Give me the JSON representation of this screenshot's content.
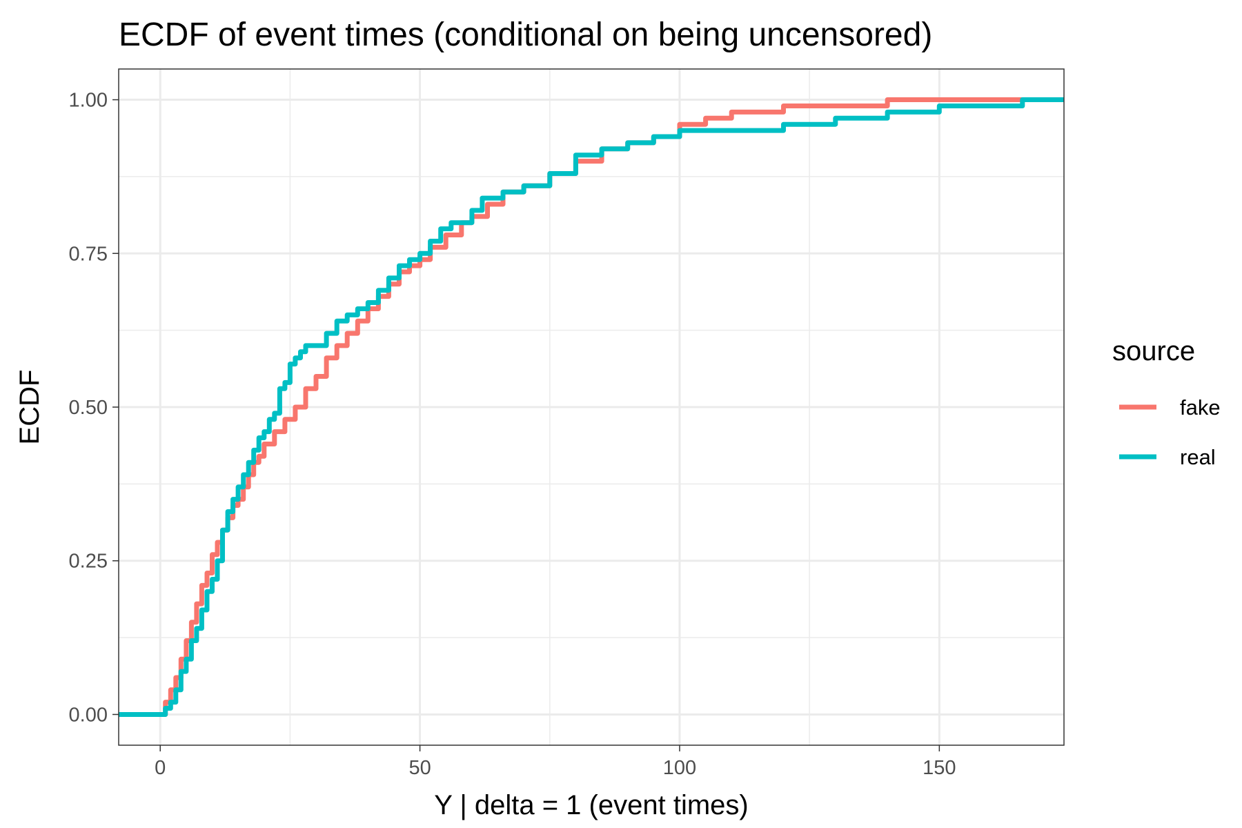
{
  "chart_data": {
    "type": "line",
    "step": true,
    "title": "ECDF of event times (conditional on being uncensored)",
    "xlabel": "Y | delta = 1 (event times)",
    "ylabel": "ECDF",
    "xlim": [
      -8,
      174
    ],
    "ylim": [
      -0.05,
      1.05
    ],
    "xticks": [
      0,
      50,
      100,
      150
    ],
    "xtick_labels": [
      "0",
      "50",
      "100",
      "150"
    ],
    "yticks": [
      0,
      0.25,
      0.5,
      0.75,
      1
    ],
    "ytick_labels": [
      "0.00",
      "0.25",
      "0.50",
      "0.75",
      "1.00"
    ],
    "grid": true,
    "legend": {
      "title": "source",
      "position": "right"
    },
    "series": [
      {
        "name": "fake",
        "color": "#F8766D",
        "x": [
          -8,
          0,
          1,
          2,
          3,
          4,
          5,
          6,
          7,
          8,
          9,
          10,
          11,
          12,
          13,
          14,
          15,
          16,
          17,
          18,
          19,
          20,
          22,
          24,
          26,
          28,
          30,
          32,
          34,
          36,
          38,
          40,
          42,
          44,
          46,
          48,
          50,
          52,
          55,
          58,
          60,
          63,
          66,
          70,
          75,
          80,
          85,
          90,
          95,
          100,
          105,
          110,
          120,
          130,
          140,
          150,
          160,
          167,
          174
        ],
        "y": [
          0,
          0,
          0.02,
          0.04,
          0.06,
          0.09,
          0.12,
          0.15,
          0.18,
          0.21,
          0.23,
          0.26,
          0.28,
          0.3,
          0.32,
          0.34,
          0.35,
          0.37,
          0.39,
          0.41,
          0.42,
          0.44,
          0.46,
          0.48,
          0.5,
          0.53,
          0.55,
          0.58,
          0.6,
          0.62,
          0.64,
          0.66,
          0.68,
          0.7,
          0.72,
          0.73,
          0.74,
          0.76,
          0.78,
          0.8,
          0.81,
          0.83,
          0.85,
          0.86,
          0.88,
          0.9,
          0.92,
          0.93,
          0.94,
          0.96,
          0.97,
          0.98,
          0.99,
          0.99,
          1.0,
          1.0,
          1.0,
          1.0,
          1.0
        ]
      },
      {
        "name": "real",
        "color": "#00BFC4",
        "x": [
          -8,
          0,
          1,
          2,
          3,
          4,
          5,
          6,
          7,
          8,
          9,
          10,
          11,
          12,
          13,
          14,
          15,
          16,
          17,
          18,
          19,
          20,
          21,
          22,
          23,
          24,
          25,
          26,
          27,
          28,
          30,
          32,
          34,
          36,
          38,
          40,
          42,
          44,
          46,
          48,
          50,
          52,
          54,
          56,
          60,
          62,
          66,
          70,
          75,
          80,
          85,
          90,
          95,
          100,
          110,
          120,
          130,
          140,
          150,
          160,
          166,
          174
        ],
        "y": [
          0,
          0,
          0.01,
          0.02,
          0.04,
          0.07,
          0.09,
          0.12,
          0.14,
          0.17,
          0.2,
          0.22,
          0.25,
          0.3,
          0.33,
          0.35,
          0.37,
          0.39,
          0.41,
          0.43,
          0.45,
          0.46,
          0.48,
          0.49,
          0.53,
          0.54,
          0.57,
          0.58,
          0.59,
          0.6,
          0.6,
          0.62,
          0.64,
          0.65,
          0.66,
          0.67,
          0.69,
          0.71,
          0.73,
          0.74,
          0.75,
          0.77,
          0.79,
          0.8,
          0.82,
          0.84,
          0.85,
          0.86,
          0.88,
          0.91,
          0.92,
          0.93,
          0.94,
          0.95,
          0.95,
          0.96,
          0.97,
          0.98,
          0.99,
          0.99,
          1.0,
          1.0
        ]
      }
    ]
  }
}
